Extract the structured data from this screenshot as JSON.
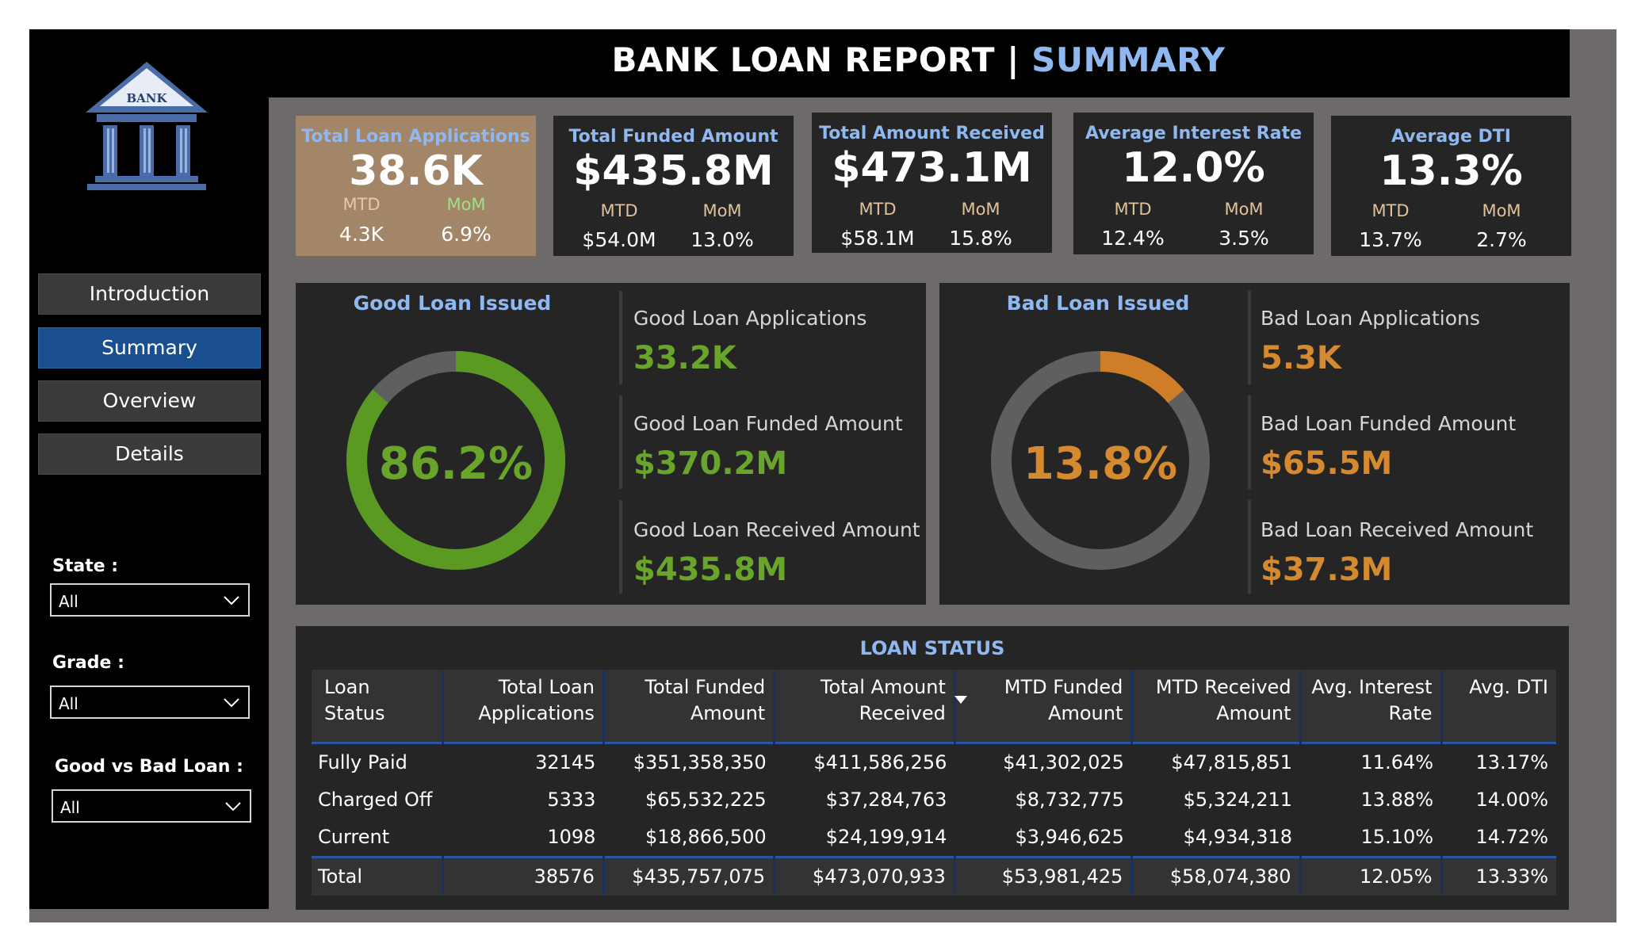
{
  "header": {
    "title_main": "BANK LOAN REPORT | ",
    "title_accent": "SUMMARY"
  },
  "logo": {
    "text": "BANK"
  },
  "nav": [
    {
      "label": "Introduction",
      "active": false
    },
    {
      "label": "Summary",
      "active": true
    },
    {
      "label": "Overview",
      "active": false
    },
    {
      "label": "Details",
      "active": false
    }
  ],
  "filters": {
    "state": {
      "label": "State :",
      "value": "All"
    },
    "grade": {
      "label": "Grade :",
      "value": "All"
    },
    "good_bad": {
      "label": "Good vs Bad Loan :",
      "value": "All"
    }
  },
  "kpis": [
    {
      "title": "Total Loan Applications",
      "value": "38.6K",
      "mtd_label": "MTD",
      "mtd": "4.3K",
      "mom_label": "MoM",
      "mom": "6.9%"
    },
    {
      "title": "Total Funded Amount",
      "value": "$435.8M",
      "mtd_label": "MTD",
      "mtd": "$54.0M",
      "mom_label": "MoM",
      "mom": "13.0%"
    },
    {
      "title": "Total Amount Received",
      "value": "$473.1M",
      "mtd_label": "MTD",
      "mtd": "$58.1M",
      "mom_label": "MoM",
      "mom": "15.8%"
    },
    {
      "title": "Average Interest Rate",
      "value": "12.0%",
      "mtd_label": "MTD",
      "mtd": "12.4%",
      "mom_label": "MoM",
      "mom": "3.5%"
    },
    {
      "title": "Average DTI",
      "value": "13.3%",
      "mtd_label": "MTD",
      "mtd": "13.7%",
      "mom_label": "MoM",
      "mom": "2.7%"
    }
  ],
  "good_loan": {
    "title": "Good Loan Issued",
    "percent_label": "86.2%",
    "percent": 0.862,
    "color": "#5a9a23",
    "applications_label": "Good Loan Applications",
    "applications": "33.2K",
    "funded_label": "Good Loan Funded Amount",
    "funded": "$370.2M",
    "received_label": "Good Loan Received Amount",
    "received": "$435.8M"
  },
  "bad_loan": {
    "title": "Bad Loan Issued",
    "percent_label": "13.8%",
    "percent": 0.138,
    "color": "#d07d28",
    "applications_label": "Bad Loan Applications",
    "applications": "5.3K",
    "funded_label": "Bad Loan Funded Amount",
    "funded": "$65.5M",
    "received_label": "Bad Loan Received Amount",
    "received": "$37.3M"
  },
  "loan_status": {
    "title": "LOAN STATUS",
    "headers": [
      [
        "Loan Status"
      ],
      [
        "Total Loan",
        "Applications"
      ],
      [
        "Total Funded",
        "Amount"
      ],
      [
        "Total Amount",
        "Received"
      ],
      [
        "MTD Funded",
        "Amount"
      ],
      [
        "MTD Received",
        "Amount"
      ],
      [
        "Avg. Interest",
        "Rate"
      ],
      [
        "Avg. DTI"
      ]
    ],
    "rows": [
      [
        "Fully Paid",
        "32145",
        "$351,358,350",
        "$411,586,256",
        "$41,302,025",
        "$47,815,851",
        "11.64%",
        "13.17%"
      ],
      [
        "Charged Off",
        "5333",
        "$65,532,225",
        "$37,284,763",
        "$8,732,775",
        "$5,324,211",
        "13.88%",
        "14.00%"
      ],
      [
        "Current",
        "1098",
        "$18,866,500",
        "$24,199,914",
        "$3,946,625",
        "$4,934,318",
        "15.10%",
        "14.72%"
      ]
    ],
    "total": [
      "Total",
      "38576",
      "$435,757,075",
      "$473,070,933",
      "$53,981,425",
      "$58,074,380",
      "12.05%",
      "13.33%"
    ]
  }
}
